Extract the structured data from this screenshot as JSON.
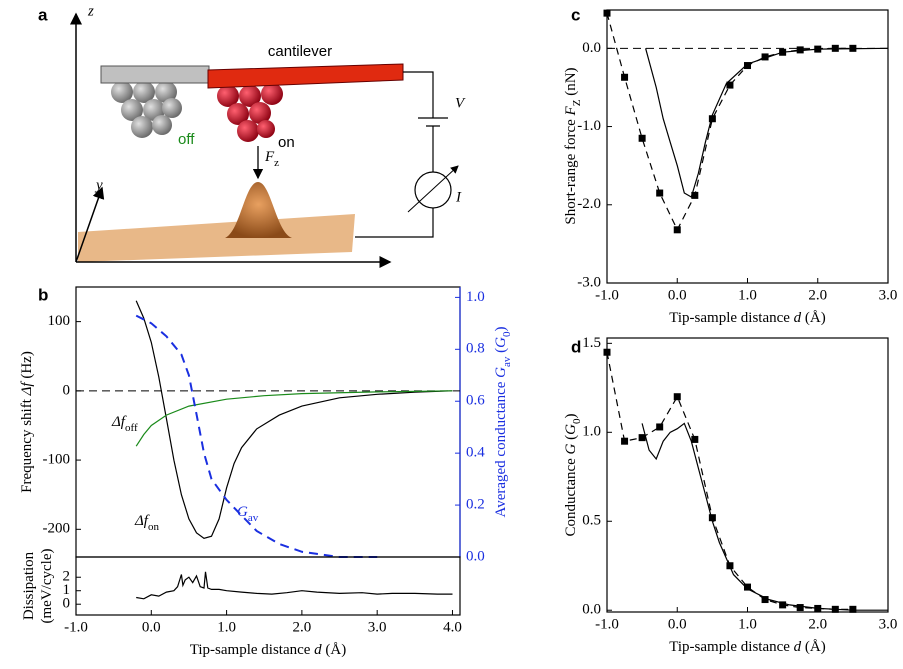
{
  "diagram": {
    "panel_label": "a",
    "z_axis": "z",
    "y_axis": "y",
    "cantilever": "cantilever",
    "voltage": "V",
    "off": "off",
    "on": "on",
    "force": [
      {
        "text": "F",
        "italic": true
      },
      {
        "text": "z",
        "sub": true
      }
    ],
    "current": "I"
  },
  "chart_data": [
    {
      "type": "line",
      "panel_label": "b",
      "xlim": [
        -1,
        4.1
      ],
      "ylim": [
        -240,
        150
      ],
      "yticks": [
        100,
        0,
        -100,
        -200
      ],
      "y2lim": [
        0,
        1.04
      ],
      "y2color": "#1a2fe0",
      "y2ticks": [
        {
          "value": 0,
          "label": "0.0"
        },
        {
          "value": 0.2,
          "label": "0.2"
        },
        {
          "value": 0.4,
          "label": "0.4"
        },
        {
          "value": 0.6,
          "label": "0.6"
        },
        {
          "value": 0.8,
          "label": "0.8"
        },
        {
          "value": 1,
          "label": "1.0"
        }
      ],
      "hline": 0,
      "ylabel": [
        {
          "text": "Frequency shift "
        },
        {
          "text": "Δf",
          "italic": true
        },
        {
          "text": " (Hz)"
        }
      ],
      "y2label": [
        {
          "text": "Averaged conductance "
        },
        {
          "text": "G",
          "italic": true
        },
        {
          "text": "av",
          "sub": true
        },
        {
          "text": " ("
        },
        {
          "text": "G",
          "italic": true
        },
        {
          "text": "0",
          "sub": true
        },
        {
          "text": ")"
        }
      ],
      "annotations": [
        [
          {
            "text": "Δf",
            "italic": true
          },
          {
            "text": "off",
            "sub": true
          }
        ],
        [
          {
            "text": "Δf",
            "italic": true
          },
          {
            "text": "on",
            "sub": true
          }
        ],
        [
          {
            "text": "G",
            "italic": true
          },
          {
            "text": "av",
            "sub": true
          }
        ]
      ],
      "series": [
        {
          "color": "#000000",
          "style": "solid",
          "x": [
            -0.2,
            -0.1,
            0,
            0.1,
            0.2,
            0.3,
            0.4,
            0.5,
            0.6,
            0.7,
            0.8,
            0.9,
            1.0,
            1.1,
            1.2,
            1.4,
            1.7,
            2.0,
            2.5,
            3.0,
            3.5,
            4.0
          ],
          "values": [
            130,
            105,
            70,
            20,
            -40,
            -100,
            -150,
            -185,
            -205,
            -213,
            -210,
            -185,
            -140,
            -105,
            -82,
            -55,
            -35,
            -22,
            -10,
            -5,
            -2,
            0
          ]
        },
        {
          "color": "#1a8a1a",
          "style": "solid",
          "x": [
            -0.2,
            -0.1,
            0,
            0.2,
            0.5,
            1.0,
            1.5,
            2.0,
            3.0,
            4.0
          ],
          "values": [
            -80,
            -63,
            -50,
            -35,
            -22,
            -12,
            -7,
            -4,
            -1.5,
            0
          ]
        },
        {
          "color": "#1a2fe0",
          "style": "dashed",
          "axis": "y2",
          "x": [
            -0.2,
            0,
            0.2,
            0.4,
            0.5,
            0.6,
            0.7,
            0.8,
            1.0,
            1.2,
            1.4,
            1.7,
            2.0,
            2.5,
            3.0
          ],
          "values": [
            0.93,
            0.9,
            0.85,
            0.78,
            0.7,
            0.55,
            0.4,
            0.3,
            0.22,
            0.16,
            0.1,
            0.05,
            0.02,
            0,
            0
          ]
        }
      ]
    },
    {
      "type": "line",
      "xlim": [
        -1,
        4.1
      ],
      "ylim": [
        -0.8,
        3.5
      ],
      "yticks": [
        0,
        1,
        2
      ],
      "xticks": [
        {
          "value": -1,
          "label": "-1.0"
        },
        {
          "value": 0,
          "label": "0.0"
        },
        {
          "value": 1,
          "label": "1.0"
        },
        {
          "value": 2,
          "label": "2.0"
        },
        {
          "value": 3,
          "label": "3.0"
        },
        {
          "value": 4,
          "label": "4.0"
        }
      ],
      "ylabel": [
        {
          "text": "Dissipation"
        },
        {
          "text": "(meV/cycle)",
          "newline": true
        }
      ],
      "xlabel": [
        {
          "text": "Tip-sample distance "
        },
        {
          "text": "d",
          "italic": true
        },
        {
          "text": " (Å)"
        }
      ],
      "series": [
        {
          "color": "#000000",
          "style": "solid",
          "x": [
            -0.2,
            -0.1,
            0,
            0.1,
            0.2,
            0.3,
            0.35,
            0.4,
            0.42,
            0.45,
            0.5,
            0.55,
            0.6,
            0.65,
            0.7,
            0.72,
            0.75,
            0.8,
            0.9,
            1.0,
            1.2,
            1.4,
            1.6,
            1.8,
            2.0,
            2.2,
            2.5,
            2.8,
            3.0,
            3.2,
            3.5,
            3.8,
            4.0
          ],
          "values": [
            0.5,
            0.4,
            0.7,
            0.6,
            0.9,
            1.0,
            1.3,
            2.2,
            1.4,
            1.8,
            2.0,
            1.6,
            2.1,
            1.3,
            1.2,
            2.4,
            1.2,
            1.1,
            1.1,
            1.0,
            0.9,
            0.8,
            0.75,
            0.85,
            1.0,
            0.9,
            0.8,
            0.85,
            0.75,
            0.8,
            0.8,
            0.75,
            0.75
          ]
        }
      ]
    },
    {
      "type": "line",
      "panel_label": "c",
      "xlim": [
        -1,
        3
      ],
      "ylim": [
        -3,
        0.49
      ],
      "hline": 0,
      "xticks": [
        {
          "value": -1,
          "label": "-1.0"
        },
        {
          "value": 0,
          "label": "0.0"
        },
        {
          "value": 1,
          "label": "1.0"
        },
        {
          "value": 2,
          "label": "2.0"
        },
        {
          "value": 3,
          "label": "3.0"
        }
      ],
      "yticks": [
        {
          "value": 0,
          "label": "0.0"
        },
        {
          "value": -1,
          "label": "-1.0"
        },
        {
          "value": -2,
          "label": "-2.0"
        },
        {
          "value": -3,
          "label": "-3.0"
        }
      ],
      "ylabel": [
        {
          "text": "Short-range force "
        },
        {
          "text": "F",
          "italic": true
        },
        {
          "text": "Z",
          "sub": true
        },
        {
          "text": " (nN)"
        }
      ],
      "xlabel": [
        {
          "text": "Tip-sample distance "
        },
        {
          "text": "d",
          "italic": true
        },
        {
          "text": " (Å)"
        }
      ],
      "series": [
        {
          "color": "#000000",
          "style": "dashed",
          "marker": "square",
          "x": [
            -1,
            -0.75,
            -0.5,
            -0.25,
            0,
            0.25,
            0.5,
            0.75,
            1,
            1.25,
            1.5,
            1.75,
            2,
            2.25,
            2.5
          ],
          "values": [
            0.45,
            -0.37,
            -1.15,
            -1.85,
            -2.32,
            -1.88,
            -0.9,
            -0.47,
            -0.22,
            -0.11,
            -0.05,
            -0.02,
            -0.01,
            0,
            0
          ]
        },
        {
          "color": "#000000",
          "style": "solid",
          "x": [
            -0.45,
            -0.3,
            -0.2,
            -0.1,
            0,
            0.1,
            0.2,
            0.3,
            0.4,
            0.5,
            0.7,
            1.0,
            1.5,
            2.0,
            3.0
          ],
          "values": [
            0,
            -0.5,
            -0.9,
            -1.2,
            -1.5,
            -1.85,
            -1.9,
            -1.6,
            -1.2,
            -0.85,
            -0.45,
            -0.2,
            -0.05,
            -0.01,
            0
          ]
        }
      ]
    },
    {
      "type": "line",
      "panel_label": "d",
      "xlim": [
        -1,
        3
      ],
      "ylim": [
        -0.01,
        1.53
      ],
      "xticks": [
        {
          "value": -1,
          "label": "-1.0"
        },
        {
          "value": 0,
          "label": "0.0"
        },
        {
          "value": 1,
          "label": "1.0"
        },
        {
          "value": 2,
          "label": "2.0"
        },
        {
          "value": 3,
          "label": "3.0"
        }
      ],
      "yticks": [
        {
          "value": 0,
          "label": "0.0"
        },
        {
          "value": 0.5,
          "label": "0.5"
        },
        {
          "value": 1,
          "label": "1.0"
        },
        {
          "value": 1.5,
          "label": "1.5"
        }
      ],
      "ylabel": [
        {
          "text": "Conductance "
        },
        {
          "text": "G",
          "italic": true
        },
        {
          "text": " ("
        },
        {
          "text": "G",
          "italic": true
        },
        {
          "text": "0",
          "sub": true
        },
        {
          "text": ")"
        }
      ],
      "xlabel": [
        {
          "text": "Tip-sample distance "
        },
        {
          "text": "d",
          "italic": true
        },
        {
          "text": " (Å)"
        }
      ],
      "series": [
        {
          "color": "#000000",
          "style": "dashed",
          "marker": "square",
          "x": [
            -1,
            -0.75,
            -0.5,
            -0.25,
            0,
            0.25,
            0.5,
            0.75,
            1,
            1.25,
            1.5,
            1.75,
            2,
            2.25,
            2.5
          ],
          "values": [
            1.45,
            0.95,
            0.97,
            1.03,
            1.2,
            0.96,
            0.52,
            0.25,
            0.13,
            0.06,
            0.03,
            0.015,
            0.01,
            0.005,
            0.005
          ]
        },
        {
          "color": "#000000",
          "style": "solid",
          "x": [
            -0.5,
            -0.4,
            -0.3,
            -0.2,
            -0.1,
            0,
            0.1,
            0.2,
            0.3,
            0.4,
            0.5,
            0.6,
            0.8,
            1.0,
            1.3,
            1.6,
            2.0,
            2.5,
            3.0
          ],
          "values": [
            1.05,
            0.9,
            0.85,
            0.95,
            1.0,
            1.02,
            1.05,
            0.95,
            0.8,
            0.65,
            0.5,
            0.38,
            0.2,
            0.12,
            0.06,
            0.03,
            0.01,
            0,
            0
          ]
        }
      ]
    }
  ]
}
